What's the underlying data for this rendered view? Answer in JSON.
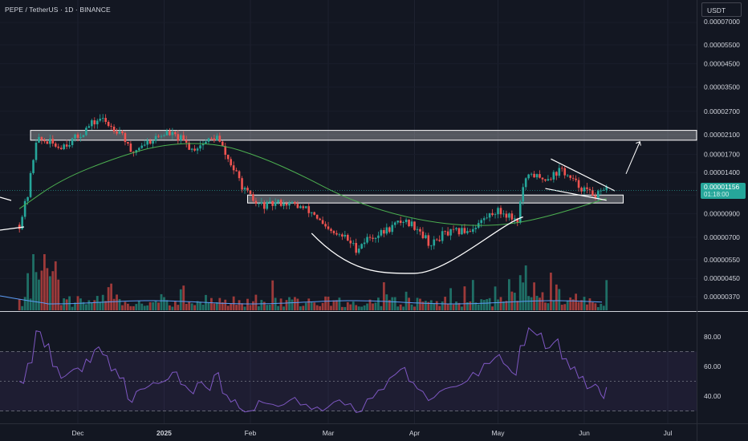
{
  "header": {
    "title": "PEPE / TetherUS · 1D · BINANCE",
    "currency": "USDT"
  },
  "last_price": {
    "value": "0.00001156",
    "countdown": "01:18:00"
  },
  "colors": {
    "background": "#131722",
    "up": "#26a69a",
    "down": "#ef5350",
    "ma": "#4caf50",
    "rsi": "#7e57c2",
    "volume_ma": "#5b9cf6",
    "annotation": "#ffffff"
  },
  "chart_data": [
    {
      "type": "candlestick",
      "symbol": "PEPE/USDT",
      "timeframe": "1D",
      "x_ticks": [
        "Dec",
        "2025",
        "Feb",
        "Mar",
        "Apr",
        "May",
        "Jun",
        "Jul"
      ],
      "y_scale": "log",
      "y_ticks": [
        "0.00007000",
        "0.00005500",
        "0.00004500",
        "0.00003500",
        "0.00002700",
        "0.00002100",
        "0.00001700",
        "0.00001400",
        "0.00001100",
        "0.00000900",
        "0.00000700",
        "0.00000550",
        "0.00000450",
        "0.00000370"
      ],
      "y_tick_values": [
        7e-05,
        5.5e-05,
        4.5e-05,
        3.5e-05,
        2.7e-05,
        2.1e-05,
        1.7e-05,
        1.4e-05,
        1.1e-05,
        9e-06,
        7e-06,
        5.5e-06,
        4.5e-06,
        3.7e-06
      ],
      "ylim": [
        3.2e-06,
        8.2e-05
      ],
      "close_path": [
        [
          "2024-11-10",
          8e-06
        ],
        [
          "2024-11-13",
          1.1e-05
        ],
        [
          "2024-11-16",
          2e-05
        ],
        [
          "2024-11-20",
          1.95e-05
        ],
        [
          "2024-11-24",
          1.85e-05
        ],
        [
          "2024-11-28",
          1.95e-05
        ],
        [
          "2024-12-01",
          2.05e-05
        ],
        [
          "2024-12-05",
          2.3e-05
        ],
        [
          "2024-12-09",
          2.5e-05
        ],
        [
          "2024-12-13",
          2.3e-05
        ],
        [
          "2024-12-17",
          2.15e-05
        ],
        [
          "2024-12-20",
          1.7e-05
        ],
        [
          "2024-12-24",
          1.9e-05
        ],
        [
          "2024-12-28",
          2e-05
        ],
        [
          "2025-01-02",
          2.15e-05
        ],
        [
          "2025-01-07",
          2e-05
        ],
        [
          "2025-01-11",
          1.8e-05
        ],
        [
          "2025-01-16",
          1.95e-05
        ],
        [
          "2025-01-20",
          2.05e-05
        ],
        [
          "2025-01-23",
          1.7e-05
        ],
        [
          "2025-01-26",
          1.45e-05
        ],
        [
          "2025-01-30",
          1.15e-05
        ],
        [
          "2025-02-03",
          1e-05
        ],
        [
          "2025-02-07",
          9.8e-06
        ],
        [
          "2025-02-12",
          1.02e-05
        ],
        [
          "2025-02-18",
          9.8e-06
        ],
        [
          "2025-02-24",
          9e-06
        ],
        [
          "2025-02-28",
          7.6e-06
        ],
        [
          "2025-03-03",
          7.2e-06
        ],
        [
          "2025-03-07",
          7e-06
        ],
        [
          "2025-03-11",
          6.2e-06
        ],
        [
          "2025-03-15",
          6.9e-06
        ],
        [
          "2025-03-20",
          7.3e-06
        ],
        [
          "2025-03-25",
          8e-06
        ],
        [
          "2025-03-28",
          8.4e-06
        ],
        [
          "2025-04-02",
          7.8e-06
        ],
        [
          "2025-04-07",
          6.4e-06
        ],
        [
          "2025-04-11",
          7.2e-06
        ],
        [
          "2025-04-16",
          7.4e-06
        ],
        [
          "2025-04-21",
          7.6e-06
        ],
        [
          "2025-04-26",
          8.5e-06
        ],
        [
          "2025-04-30",
          9.3e-06
        ],
        [
          "2025-05-04",
          9e-06
        ],
        [
          "2025-05-08",
          8.4e-06
        ],
        [
          "2025-05-10",
          1.2e-05
        ],
        [
          "2025-05-13",
          1.4e-05
        ],
        [
          "2025-05-16",
          1.3e-05
        ],
        [
          "2025-05-20",
          1.35e-05
        ],
        [
          "2025-05-24",
          1.45e-05
        ],
        [
          "2025-05-27",
          1.3e-05
        ],
        [
          "2025-05-30",
          1.22e-05
        ],
        [
          "2025-06-03",
          1.12e-05
        ],
        [
          "2025-06-06",
          1.1e-05
        ],
        [
          "2025-06-09",
          1.156e-05
        ]
      ],
      "ma_path": [
        [
          "2024-11-10",
          9.5e-06
        ],
        [
          "2024-11-25",
          1.3e-05
        ],
        [
          "2024-12-15",
          1.65e-05
        ],
        [
          "2025-01-01",
          1.9e-05
        ],
        [
          "2025-01-20",
          1.92e-05
        ],
        [
          "2025-02-05",
          1.65e-05
        ],
        [
          "2025-02-20",
          1.35e-05
        ],
        [
          "2025-03-05",
          1.1e-05
        ],
        [
          "2025-03-20",
          9.3e-06
        ],
        [
          "2025-04-05",
          8.3e-06
        ],
        [
          "2025-04-20",
          7.9e-06
        ],
        [
          "2025-05-05",
          8e-06
        ],
        [
          "2025-05-20",
          8.8e-06
        ],
        [
          "2025-06-09",
          1.06e-05
        ]
      ],
      "resistance_zone": {
        "from": "2024-11-14",
        "to": "end",
        "low": 1.98e-05,
        "high": 2.2e-05
      },
      "support_zone": {
        "from": "2025-01-31",
        "to": "2025-06-15",
        "low": 1.01e-05,
        "high": 1.1e-05
      },
      "cup_curve": {
        "start": [
          "2025-02-23",
          7.3e-06
        ],
        "bottom": [
          "2025-04-01",
          4.75e-06
        ],
        "end": [
          "2025-05-10",
          8.7e-06
        ]
      },
      "falling_wedge": {
        "upper": [
          [
            "2025-05-20",
            1.62e-05
          ],
          [
            "2025-06-12",
            1.15e-05
          ]
        ],
        "lower": [
          [
            "2025-05-18",
            1.18e-05
          ],
          [
            "2025-06-09",
            1.04e-05
          ]
        ]
      },
      "breakout_arrow": {
        "from": [
          "2025-06-16",
          1.38e-05
        ],
        "to": [
          "2025-06-21",
          1.95e-05
        ]
      },
      "volume": {
        "ma_level": 0.35
      }
    },
    {
      "type": "line",
      "name": "RSI",
      "y_ticks": [
        80,
        60,
        40
      ],
      "ylim": [
        24,
        92
      ],
      "bands": [
        30,
        50,
        70
      ],
      "values": [
        [
          "2024-11-10",
          50
        ],
        [
          "2024-11-13",
          62
        ],
        [
          "2024-11-16",
          84
        ],
        [
          "2024-11-19",
          73
        ],
        [
          "2024-11-22",
          60
        ],
        [
          "2024-11-25",
          52
        ],
        [
          "2024-11-28",
          56
        ],
        [
          "2024-12-01",
          59
        ],
        [
          "2024-12-04",
          65
        ],
        [
          "2024-12-07",
          71
        ],
        [
          "2024-12-10",
          68
        ],
        [
          "2024-12-13",
          57
        ],
        [
          "2024-12-16",
          52
        ],
        [
          "2024-12-19",
          38
        ],
        [
          "2024-12-22",
          43
        ],
        [
          "2024-12-25",
          45
        ],
        [
          "2024-12-28",
          49
        ],
        [
          "2025-01-01",
          50
        ],
        [
          "2025-01-04",
          56
        ],
        [
          "2025-01-07",
          48
        ],
        [
          "2025-01-10",
          44
        ],
        [
          "2025-01-13",
          49
        ],
        [
          "2025-01-16",
          46
        ],
        [
          "2025-01-19",
          54
        ],
        [
          "2025-01-22",
          42
        ],
        [
          "2025-01-25",
          36
        ],
        [
          "2025-01-28",
          32
        ],
        [
          "2025-02-01",
          30
        ],
        [
          "2025-02-04",
          37
        ],
        [
          "2025-02-07",
          35
        ],
        [
          "2025-02-11",
          33
        ],
        [
          "2025-02-15",
          37
        ],
        [
          "2025-02-19",
          34
        ],
        [
          "2025-02-23",
          31
        ],
        [
          "2025-02-27",
          30
        ],
        [
          "2025-03-03",
          36
        ],
        [
          "2025-03-07",
          34
        ],
        [
          "2025-03-11",
          29
        ],
        [
          "2025-03-15",
          38
        ],
        [
          "2025-03-19",
          44
        ],
        [
          "2025-03-23",
          52
        ],
        [
          "2025-03-27",
          58
        ],
        [
          "2025-03-30",
          50
        ],
        [
          "2025-04-02",
          45
        ],
        [
          "2025-04-06",
          37
        ],
        [
          "2025-04-10",
          43
        ],
        [
          "2025-04-14",
          46
        ],
        [
          "2025-04-18",
          48
        ],
        [
          "2025-04-22",
          56
        ],
        [
          "2025-04-26",
          62
        ],
        [
          "2025-04-30",
          66
        ],
        [
          "2025-05-03",
          62
        ],
        [
          "2025-05-06",
          56
        ],
        [
          "2025-05-09",
          74
        ],
        [
          "2025-05-12",
          86
        ],
        [
          "2025-05-15",
          81
        ],
        [
          "2025-05-18",
          72
        ],
        [
          "2025-05-21",
          76
        ],
        [
          "2025-05-24",
          65
        ],
        [
          "2025-05-27",
          58
        ],
        [
          "2025-05-30",
          52
        ],
        [
          "2025-06-02",
          45
        ],
        [
          "2025-06-05",
          48
        ],
        [
          "2025-06-07",
          41
        ],
        [
          "2025-06-09",
          46
        ]
      ]
    }
  ]
}
